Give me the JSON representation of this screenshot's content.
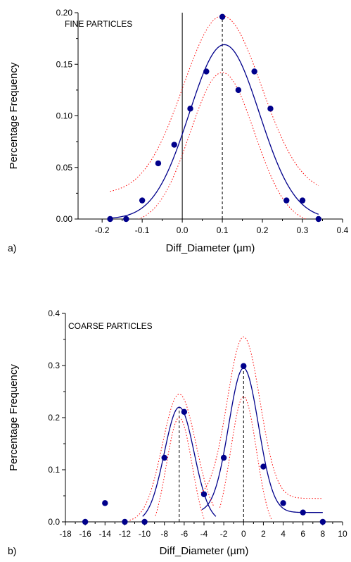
{
  "chart_data": [
    {
      "type": "scatter",
      "panel_label": "a)",
      "annotation": "FINE PARTICLES",
      "xlabel": "Diff_Diameter (µm)",
      "ylabel": "Percentage Frequency",
      "xlim": [
        -0.26,
        0.4
      ],
      "ylim": [
        0,
        0.2
      ],
      "xticks": [
        "-0.2",
        "-0.1",
        "0.0",
        "0.1",
        "0.2",
        "0.3",
        "0.4"
      ],
      "yticks": [
        "0.00",
        "0.05",
        "0.10",
        "0.15",
        "0.20"
      ],
      "xtick_values": [
        -0.2,
        -0.1,
        0.0,
        0.1,
        0.2,
        0.3,
        0.4
      ],
      "ytick_values": [
        0,
        0.05,
        0.1,
        0.15,
        0.2
      ],
      "points": {
        "x": [
          -0.18,
          -0.14,
          -0.1,
          -0.06,
          -0.02,
          0.02,
          0.06,
          0.1,
          0.14,
          0.18,
          0.22,
          0.26,
          0.3,
          0.34
        ],
        "y": [
          0.0,
          0.0,
          0.018,
          0.054,
          0.072,
          0.107,
          0.143,
          0.196,
          0.125,
          0.143,
          0.107,
          0.018,
          0.018,
          0.0
        ]
      },
      "fits": [
        {
          "style": "solid",
          "color": "#00008b",
          "model": "gauss",
          "y0": 0.0,
          "A": 0.169,
          "xc": 0.105,
          "w": 0.175,
          "range": [
            -0.18,
            0.34
          ]
        },
        {
          "style": "dotted",
          "color": "#ff0000",
          "model": "gauss",
          "y0": 0.024,
          "A": 0.173,
          "xc": 0.1,
          "w": 0.195,
          "range": [
            -0.18,
            0.34
          ]
        },
        {
          "style": "dotted",
          "color": "#ff0000",
          "model": "gauss",
          "y0": -0.005,
          "A": 0.147,
          "xc": 0.1,
          "w": 0.16,
          "range": [
            -0.13,
            0.33
          ]
        }
      ],
      "vlines": [
        {
          "x": 0.0,
          "style": "solid",
          "y_top": 0.2
        },
        {
          "x": 0.1,
          "style": "dashed",
          "y_top": 0.196
        }
      ],
      "colors": {
        "points": "#00008b",
        "fit": "#00008b",
        "confidence": "#ff0000"
      }
    },
    {
      "type": "scatter",
      "panel_label": "b)",
      "annotation": "COARSE PARTICLES",
      "xlabel": "Diff_Diameter (µm)",
      "ylabel": "Percentage Frequency",
      "xlim": [
        -18,
        10
      ],
      "ylim": [
        0,
        0.4
      ],
      "xticks": [
        "-18",
        "-16",
        "-14",
        "-12",
        "-10",
        "-8",
        "-6",
        "-4",
        "-2",
        "0",
        "2",
        "4",
        "6",
        "8",
        "10"
      ],
      "yticks": [
        "0.0",
        "0.1",
        "0.2",
        "0.3",
        "0.4"
      ],
      "xtick_values": [
        -18,
        -16,
        -14,
        -12,
        -10,
        -8,
        -6,
        -4,
        -2,
        0,
        2,
        4,
        6,
        8,
        10
      ],
      "ytick_values": [
        0,
        0.1,
        0.2,
        0.3,
        0.4
      ],
      "points": {
        "x": [
          -16,
          -14,
          -12,
          -10,
          -8,
          -6,
          -4,
          -2,
          0,
          2,
          4,
          6,
          8
        ],
        "y": [
          0.0,
          0.036,
          0.0,
          0.0,
          0.123,
          0.211,
          0.053,
          0.123,
          0.299,
          0.106,
          0.036,
          0.018,
          0.0
        ]
      },
      "fits": [
        {
          "style": "solid",
          "color": "#00008b",
          "model": "gauss",
          "y0": 0.0,
          "A": 0.22,
          "xc": -6.5,
          "w": 3.0,
          "range": [
            -10.2,
            -2.8
          ]
        },
        {
          "style": "solid",
          "color": "#00008b",
          "model": "gauss",
          "y0": 0.018,
          "A": 0.277,
          "xc": 0.0,
          "w": 3.0,
          "range": [
            -4.2,
            8.0
          ]
        },
        {
          "style": "dotted",
          "color": "#ff0000",
          "model": "gauss",
          "y0": 0.0,
          "A": 0.245,
          "xc": -6.5,
          "w": 3.4,
          "range": [
            -11.5,
            -3.0
          ]
        },
        {
          "style": "dotted",
          "color": "#ff0000",
          "model": "gauss",
          "y0": -0.03,
          "A": 0.23,
          "xc": -6.5,
          "w": 2.6,
          "range": [
            -8.9,
            -4.0
          ]
        },
        {
          "style": "dotted",
          "color": "#ff0000",
          "model": "gauss",
          "y0": 0.045,
          "A": 0.31,
          "xc": 0.0,
          "w": 3.3,
          "range": [
            -4.3,
            7.9
          ]
        },
        {
          "style": "dotted",
          "color": "#ff0000",
          "model": "gauss",
          "y0": -0.02,
          "A": 0.26,
          "xc": 0.0,
          "w": 2.6,
          "range": [
            -2.4,
            2.8
          ]
        }
      ],
      "vlines": [
        {
          "x": -6.5,
          "style": "dashed",
          "y_top": 0.22
        },
        {
          "x": 0.0,
          "style": "dashed",
          "y_top": 0.299
        }
      ],
      "colors": {
        "points": "#00008b",
        "fit": "#00008b",
        "confidence": "#ff0000"
      }
    }
  ]
}
